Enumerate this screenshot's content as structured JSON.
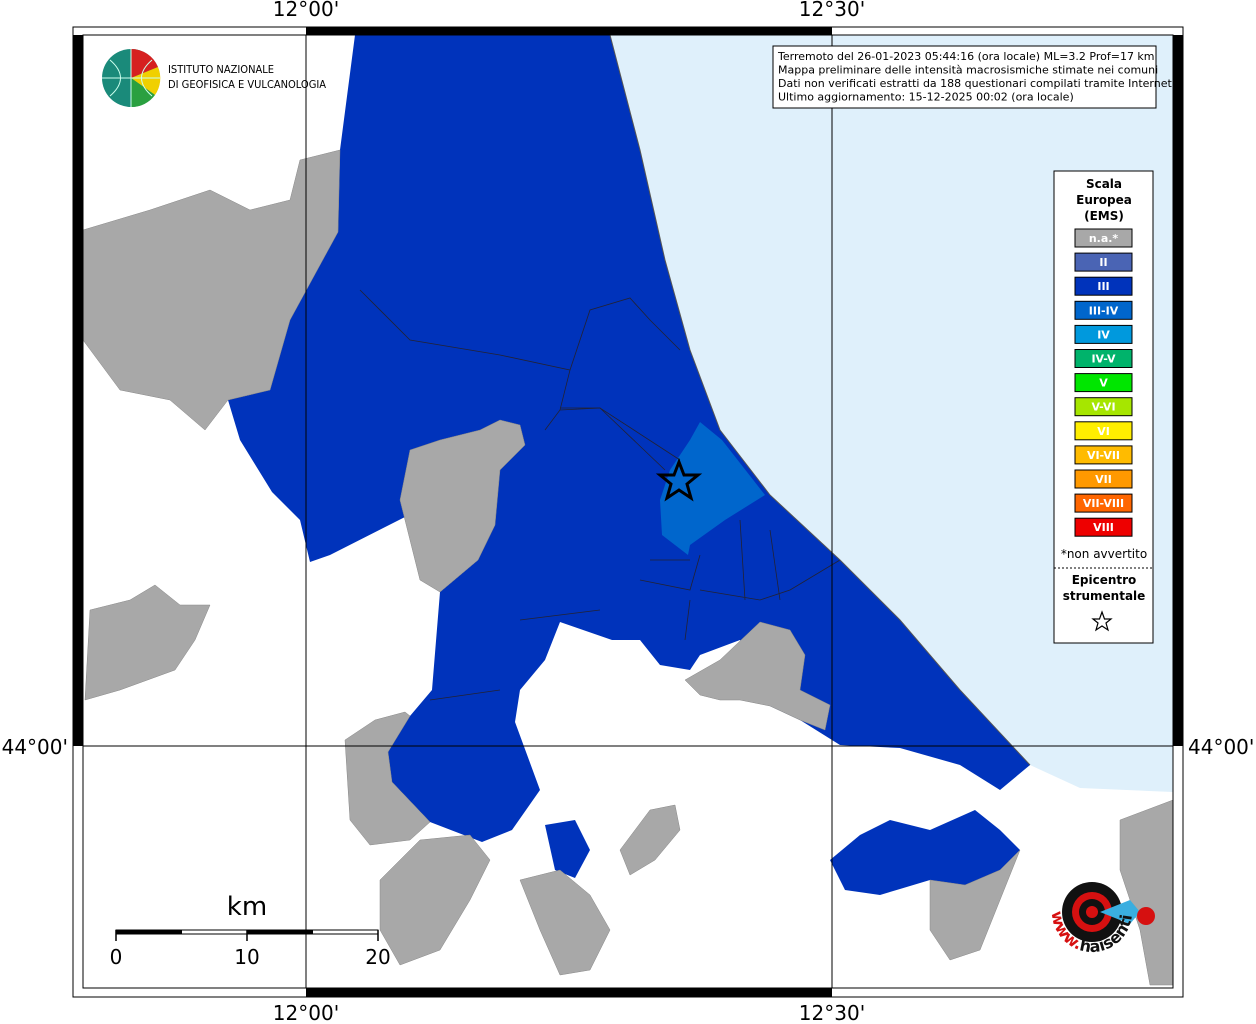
{
  "header": {
    "institute": [
      "ISTITUTO NAZIONALE",
      "DI GEOFISICA E VULCANOLOGIA"
    ]
  },
  "info": {
    "lines": [
      "Terremoto del 26-01-2023 05:44:16 (ora locale) ML=3.2 Prof=17 km",
      "Mappa preliminare delle intensità macrosismiche stimate nei comuni",
      "Dati non verificati estratti da 188 questionari compilati tramite Internet.",
      "Ultimo aggiornamento: 15-12-2025 00:02 (ora locale)"
    ]
  },
  "graticule": {
    "longitudes": [
      "12°00'",
      "12°30'"
    ],
    "latitudes": [
      "44°00'"
    ]
  },
  "legend": {
    "title": [
      "Scala",
      "Europea",
      "(EMS)"
    ],
    "items": [
      {
        "label": "n.a.*",
        "color": "#a8a8a8"
      },
      {
        "label": "II",
        "color": "#4a64b4"
      },
      {
        "label": "III",
        "color": "#0033bb"
      },
      {
        "label": "III-IV",
        "color": "#0066cc"
      },
      {
        "label": "IV",
        "color": "#0099dd"
      },
      {
        "label": "IV-V",
        "color": "#00b36b"
      },
      {
        "label": "V",
        "color": "#00e600"
      },
      {
        "label": "V-VI",
        "color": "#a6e600"
      },
      {
        "label": "VI",
        "color": "#ffee00"
      },
      {
        "label": "VI-VII",
        "color": "#ffbb00"
      },
      {
        "label": "VII",
        "color": "#ff9900"
      },
      {
        "label": "VII-VIII",
        "color": "#ff6600"
      },
      {
        "label": "VIII",
        "color": "#ee0000"
      }
    ],
    "note": "*non avvertito",
    "epicenter": [
      "Epicentro",
      "strumentale"
    ]
  },
  "scale_bar": {
    "unit": "km",
    "ticks": [
      0,
      10,
      20
    ]
  },
  "watermark": {
    "prefix": "www.",
    "site": "haisentitoilterremoto.it"
  }
}
